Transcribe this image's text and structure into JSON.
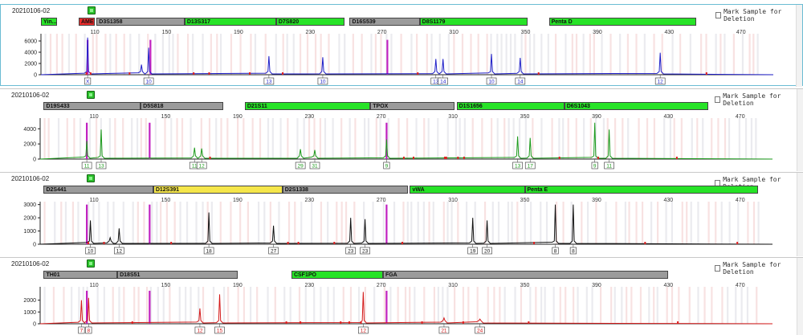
{
  "x_ticks": [
    110,
    150,
    190,
    230,
    270,
    310,
    350,
    390,
    430,
    470
  ],
  "mark_label": "Mark Sample for Deletion",
  "colors": {
    "blue": "#1f1fc8",
    "green": "#1b9a1b",
    "black": "#111111",
    "red": "#d41a1a",
    "magenta": "#c020c0"
  },
  "panels": [
    {
      "id": "p1",
      "sample": "20210106-02",
      "color": "blue",
      "yticks": [
        0,
        2000,
        4000,
        6000
      ],
      "ymax": 7000,
      "markers": [
        {
          "label": "Yin...",
          "start": 80,
          "end": 89,
          "style": "green"
        },
        {
          "label": "AMEL",
          "start": 101,
          "end": 110,
          "style": "red"
        },
        {
          "label": "D3S1358",
          "start": 111,
          "end": 160,
          "style": "gray"
        },
        {
          "label": "D13S317",
          "start": 160,
          "end": 211,
          "style": "green"
        },
        {
          "label": "D7S820",
          "start": 211,
          "end": 249,
          "style": "green"
        },
        {
          "label": "D16S539",
          "start": 252,
          "end": 291,
          "style": "gray"
        },
        {
          "label": "D8S1179",
          "start": 291,
          "end": 351,
          "style": "green"
        },
        {
          "label": "Penta D",
          "start": 363,
          "end": 445,
          "style": "green"
        }
      ],
      "peaks": [
        {
          "x": 106,
          "h": 6600,
          "label": "X"
        },
        {
          "x": 140,
          "h": 4800,
          "label": "10"
        },
        {
          "x": 136,
          "h": 1800,
          "label": ""
        },
        {
          "x": 207,
          "h": 3300,
          "label": "13"
        },
        {
          "x": 237,
          "h": 3100,
          "label": "10"
        },
        {
          "x": 300,
          "h": 2800,
          "label": "13"
        },
        {
          "x": 304,
          "h": 2800,
          "label": "14"
        },
        {
          "x": 331,
          "h": 3700,
          "label": "10"
        },
        {
          "x": 347,
          "h": 3000,
          "label": "14"
        },
        {
          "x": 425,
          "h": 3900,
          "label": "12"
        }
      ],
      "ladder": 6200
    },
    {
      "id": "p2",
      "sample": "20210106-02",
      "color": "green",
      "yticks": [
        0,
        2000,
        4000
      ],
      "ymax": 5200,
      "markers": [
        {
          "label": "D19S433",
          "start": 82,
          "end": 136,
          "style": "gray"
        },
        {
          "label": "D5S818",
          "start": 136,
          "end": 182,
          "style": "gray"
        },
        {
          "label": "D21S11",
          "start": 194,
          "end": 264,
          "style": "green"
        },
        {
          "label": "TPOX",
          "start": 264,
          "end": 311,
          "style": "gray"
        },
        {
          "label": "D1S1656",
          "start": 312,
          "end": 372,
          "style": "green"
        },
        {
          "label": "D6S1043",
          "start": 372,
          "end": 452,
          "style": "green"
        }
      ],
      "peaks": [
        {
          "x": 106,
          "h": 2400,
          "label": "11"
        },
        {
          "x": 114,
          "h": 3900,
          "label": "13"
        },
        {
          "x": 166,
          "h": 1500,
          "label": "11"
        },
        {
          "x": 170,
          "h": 1400,
          "label": "12"
        },
        {
          "x": 225,
          "h": 1300,
          "label": "29"
        },
        {
          "x": 233,
          "h": 1200,
          "label": "31"
        },
        {
          "x": 273,
          "h": 2600,
          "label": "9"
        },
        {
          "x": 346,
          "h": 3000,
          "label": "13"
        },
        {
          "x": 353,
          "h": 2800,
          "label": "17"
        },
        {
          "x": 389,
          "h": 4800,
          "label": "9"
        },
        {
          "x": 397,
          "h": 3900,
          "label": "11"
        }
      ],
      "ladder": 4800
    },
    {
      "id": "p3",
      "sample": "20210106-02",
      "color": "black",
      "yticks": [
        0,
        1000,
        2000,
        3000
      ],
      "ymax": 3100,
      "markers": [
        {
          "label": "D2S441",
          "start": 82,
          "end": 143,
          "style": "gray"
        },
        {
          "label": "D12S391",
          "start": 143,
          "end": 215,
          "style": "yellow"
        },
        {
          "label": "D2S1338",
          "start": 215,
          "end": 285,
          "style": "gray"
        },
        {
          "label": "vWA",
          "start": 286,
          "end": 350,
          "style": "green"
        },
        {
          "label": "Penta E",
          "start": 350,
          "end": 480,
          "style": "green"
        }
      ],
      "peaks": [
        {
          "x": 108,
          "h": 1800,
          "label": "10"
        },
        {
          "x": 124,
          "h": 1200,
          "label": "12"
        },
        {
          "x": 119,
          "h": 500,
          "label": ""
        },
        {
          "x": 174,
          "h": 2400,
          "label": "18"
        },
        {
          "x": 210,
          "h": 1400,
          "label": "27"
        },
        {
          "x": 253,
          "h": 2000,
          "label": "23"
        },
        {
          "x": 261,
          "h": 1900,
          "label": "23"
        },
        {
          "x": 321,
          "h": 2000,
          "label": "19"
        },
        {
          "x": 329,
          "h": 1800,
          "label": "20"
        },
        {
          "x": 367,
          "h": 3000,
          "label": "8"
        },
        {
          "x": 377,
          "h": 3000,
          "label": "8"
        }
      ],
      "ladder": 3000
    },
    {
      "id": "p4",
      "sample": "20210106-02",
      "color": "red",
      "yticks": [
        0,
        1000,
        2000
      ],
      "ymax": 3000,
      "markers": [
        {
          "label": "TH01",
          "start": 82,
          "end": 123,
          "style": "gray"
        },
        {
          "label": "D18S51",
          "start": 123,
          "end": 190,
          "style": "gray"
        },
        {
          "label": "CSF1PO",
          "start": 220,
          "end": 271,
          "style": "green"
        },
        {
          "label": "FGA",
          "start": 271,
          "end": 430,
          "style": "gray"
        }
      ],
      "peaks": [
        {
          "x": 103,
          "h": 2000,
          "label": "7"
        },
        {
          "x": 107,
          "h": 2200,
          "label": "8"
        },
        {
          "x": 169,
          "h": 1300,
          "label": "12"
        },
        {
          "x": 180,
          "h": 2500,
          "label": "15"
        },
        {
          "x": 260,
          "h": 2700,
          "label": "12"
        },
        {
          "x": 305,
          "h": 500,
          "label": "21"
        },
        {
          "x": 325,
          "h": 400,
          "label": "24"
        }
      ],
      "ladder": 2800
    }
  ]
}
